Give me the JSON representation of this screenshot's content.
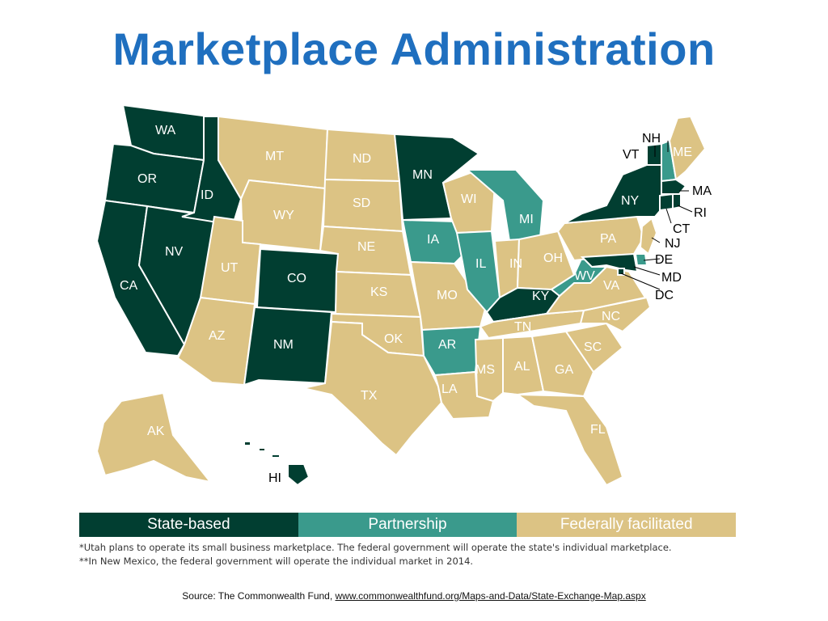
{
  "title": "Marketplace Administration",
  "colors": {
    "state_based": "#013e31",
    "partnership": "#3a9a8c",
    "federal": "#dcc384",
    "title": "#1f6fbf"
  },
  "legend": [
    {
      "label": "State-based",
      "category": "state_based"
    },
    {
      "label": "Partnership",
      "category": "partnership"
    },
    {
      "label": "Federally facilitated",
      "category": "federal"
    }
  ],
  "notes": [
    "*Utah plans to operate its small business marketplace. The federal government will operate the state's individual marketplace.",
    "**In New Mexico, the federal government will operate the individual market in 2014."
  ],
  "source": {
    "prefix": "Source: The Commonwealth Fund, ",
    "link": "www.commonwealthfund.org/Maps-and-Data/State-Exchange-Map.aspx"
  },
  "states": [
    {
      "code": "WA",
      "category": "state_based"
    },
    {
      "code": "OR",
      "category": "state_based"
    },
    {
      "code": "CA",
      "category": "state_based"
    },
    {
      "code": "NV",
      "category": "state_based"
    },
    {
      "code": "ID",
      "category": "state_based"
    },
    {
      "code": "MT",
      "category": "federal"
    },
    {
      "code": "WY",
      "category": "federal"
    },
    {
      "code": "UT",
      "category": "federal"
    },
    {
      "code": "AZ",
      "category": "federal"
    },
    {
      "code": "CO",
      "category": "state_based"
    },
    {
      "code": "NM",
      "category": "state_based"
    },
    {
      "code": "ND",
      "category": "federal"
    },
    {
      "code": "SD",
      "category": "federal"
    },
    {
      "code": "NE",
      "category": "federal"
    },
    {
      "code": "KS",
      "category": "federal"
    },
    {
      "code": "OK",
      "category": "federal"
    },
    {
      "code": "TX",
      "category": "federal"
    },
    {
      "code": "MN",
      "category": "state_based"
    },
    {
      "code": "IA",
      "category": "partnership"
    },
    {
      "code": "MO",
      "category": "federal"
    },
    {
      "code": "AR",
      "category": "partnership"
    },
    {
      "code": "LA",
      "category": "federal"
    },
    {
      "code": "WI",
      "category": "federal"
    },
    {
      "code": "IL",
      "category": "partnership"
    },
    {
      "code": "MI",
      "category": "partnership"
    },
    {
      "code": "IN",
      "category": "federal"
    },
    {
      "code": "OH",
      "category": "federal"
    },
    {
      "code": "KY",
      "category": "state_based"
    },
    {
      "code": "TN",
      "category": "federal"
    },
    {
      "code": "MS",
      "category": "federal"
    },
    {
      "code": "AL",
      "category": "federal"
    },
    {
      "code": "GA",
      "category": "federal"
    },
    {
      "code": "FL",
      "category": "federal"
    },
    {
      "code": "SC",
      "category": "federal"
    },
    {
      "code": "NC",
      "category": "federal"
    },
    {
      "code": "VA",
      "category": "federal"
    },
    {
      "code": "WV",
      "category": "partnership"
    },
    {
      "code": "PA",
      "category": "federal"
    },
    {
      "code": "NY",
      "category": "state_based"
    },
    {
      "code": "VT",
      "category": "state_based"
    },
    {
      "code": "NH",
      "category": "partnership"
    },
    {
      "code": "ME",
      "category": "federal"
    },
    {
      "code": "MA",
      "category": "state_based"
    },
    {
      "code": "RI",
      "category": "state_based"
    },
    {
      "code": "CT",
      "category": "state_based"
    },
    {
      "code": "NJ",
      "category": "federal"
    },
    {
      "code": "DE",
      "category": "partnership"
    },
    {
      "code": "MD",
      "category": "state_based"
    },
    {
      "code": "DC",
      "category": "state_based"
    },
    {
      "code": "AK",
      "category": "federal"
    },
    {
      "code": "HI",
      "category": "state_based"
    }
  ]
}
